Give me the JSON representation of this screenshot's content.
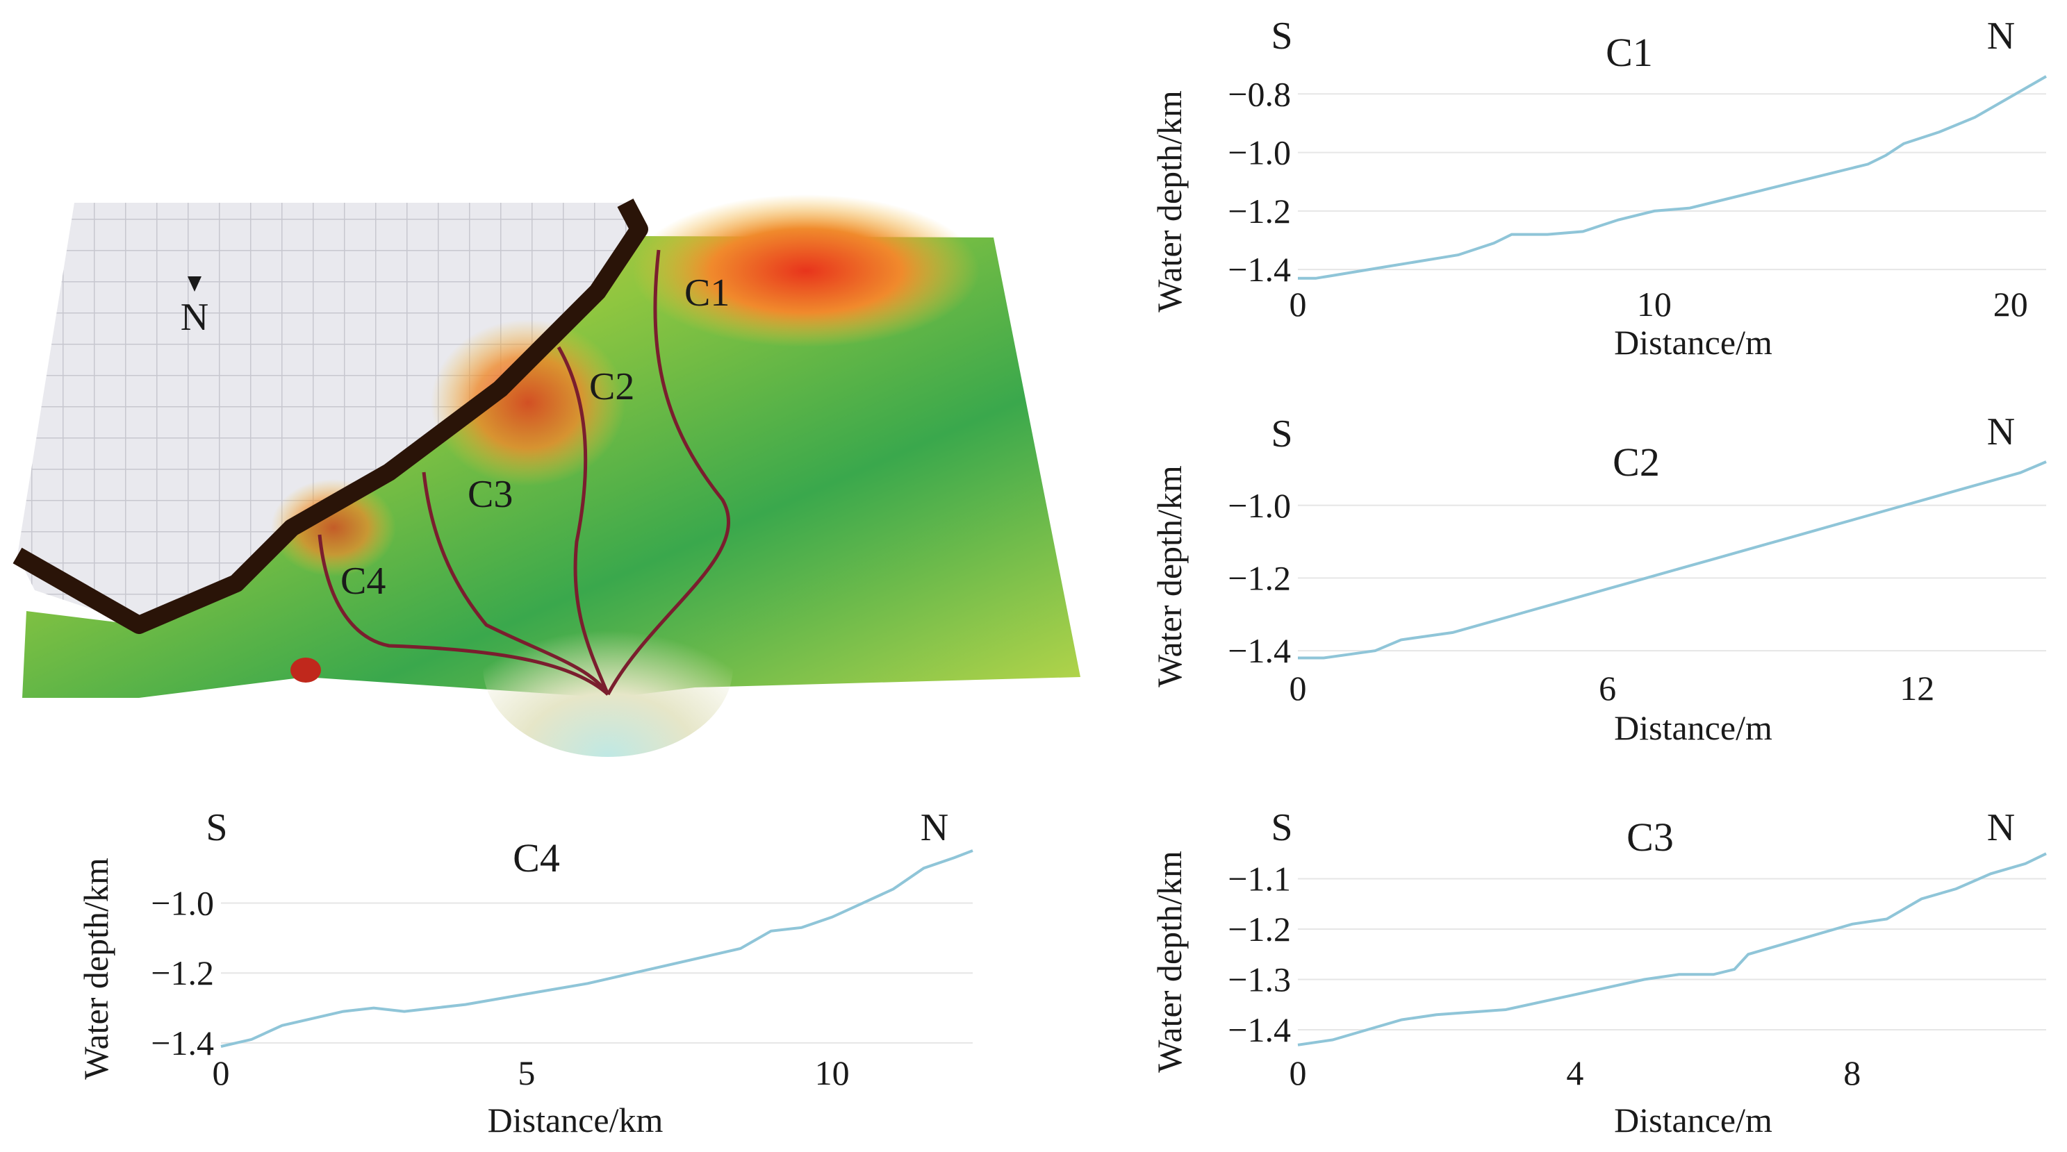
{
  "map": {
    "north_label": "N",
    "channel_labels": [
      "C1",
      "C2",
      "C3",
      "C4"
    ]
  },
  "colors": {
    "profile_line": "#8fc5d8",
    "grid": "#e6e6e6",
    "channel": "#7a1e2e"
  },
  "chart_data": [
    {
      "id": "C1",
      "type": "line",
      "title": "C1",
      "left_label": "S",
      "right_label": "N",
      "xlabel": "Distance/m",
      "ylabel": "Water depth/km",
      "xlim": [
        0,
        21
      ],
      "ylim": [
        -1.44,
        -0.74
      ],
      "xticks": [
        0,
        10,
        20
      ],
      "xtick_labels": [
        "0",
        "10",
        "20"
      ],
      "yticks": [
        -0.8,
        -1.0,
        -1.2,
        -1.4
      ],
      "ytick_labels": [
        "−0.8",
        "−1.0",
        "−1.2",
        "−1.4"
      ],
      "x": [
        0,
        0.5,
        1,
        1.5,
        2,
        2.5,
        3,
        3.5,
        4,
        4.5,
        5,
        5.5,
        6,
        7,
        8,
        8.5,
        9,
        10,
        11,
        12,
        13,
        14,
        15,
        16,
        16.5,
        17,
        17.5,
        18,
        19,
        20,
        21
      ],
      "y": [
        -1.43,
        -1.43,
        -1.42,
        -1.41,
        -1.4,
        -1.39,
        -1.38,
        -1.37,
        -1.36,
        -1.35,
        -1.33,
        -1.31,
        -1.28,
        -1.28,
        -1.27,
        -1.25,
        -1.23,
        -1.2,
        -1.19,
        -1.16,
        -1.13,
        -1.1,
        -1.07,
        -1.04,
        -1.01,
        -0.97,
        -0.95,
        -0.93,
        -0.88,
        -0.81,
        -0.74
      ]
    },
    {
      "id": "C2",
      "type": "line",
      "title": "C2",
      "left_label": "S",
      "right_label": "N",
      "xlabel": "Distance/m",
      "ylabel": "Water depth/km",
      "xlim": [
        0,
        14.5
      ],
      "ylim": [
        -1.44,
        -0.88
      ],
      "xticks": [
        0,
        6,
        12
      ],
      "xtick_labels": [
        "0",
        "6",
        "12"
      ],
      "yticks": [
        -1.0,
        -1.2,
        -1.4
      ],
      "ytick_labels": [
        "−1.0",
        "−1.2",
        "−1.4"
      ],
      "x": [
        0,
        0.5,
        1,
        1.5,
        2,
        2.5,
        3,
        3.5,
        4,
        4.5,
        5,
        5.5,
        6,
        6.5,
        7,
        7.5,
        8,
        8.5,
        9,
        9.5,
        10,
        10.5,
        11,
        11.5,
        12,
        12.5,
        13,
        13.5,
        14,
        14.5
      ],
      "y": [
        -1.42,
        -1.42,
        -1.41,
        -1.4,
        -1.37,
        -1.36,
        -1.35,
        -1.33,
        -1.31,
        -1.29,
        -1.27,
        -1.25,
        -1.23,
        -1.21,
        -1.19,
        -1.17,
        -1.15,
        -1.13,
        -1.11,
        -1.09,
        -1.07,
        -1.05,
        -1.03,
        -1.01,
        -0.99,
        -0.97,
        -0.95,
        -0.93,
        -0.91,
        -0.88
      ]
    },
    {
      "id": "C4",
      "type": "line",
      "title": "C4",
      "left_label": "S",
      "right_label": "N",
      "xlabel": "Distance/km",
      "ylabel": "Water depth/km",
      "xlim": [
        0,
        12.3
      ],
      "ylim": [
        -1.42,
        -0.84
      ],
      "xticks": [
        0,
        5,
        10
      ],
      "xtick_labels": [
        "0",
        "5",
        "10"
      ],
      "yticks": [
        -1.0,
        -1.2,
        -1.4
      ],
      "ytick_labels": [
        "−1.0",
        "−1.2",
        "−1.4"
      ],
      "x": [
        0,
        0.5,
        1,
        1.5,
        2,
        2.5,
        3,
        3.5,
        4,
        5,
        6,
        7,
        8,
        8.5,
        9,
        9.5,
        10,
        10.5,
        11,
        11.5,
        12,
        12.3
      ],
      "y": [
        -1.41,
        -1.39,
        -1.35,
        -1.33,
        -1.31,
        -1.3,
        -1.31,
        -1.3,
        -1.29,
        -1.26,
        -1.23,
        -1.19,
        -1.15,
        -1.13,
        -1.08,
        -1.07,
        -1.04,
        -1.0,
        -0.96,
        -0.9,
        -0.87,
        -0.85
      ]
    },
    {
      "id": "C3",
      "type": "line",
      "title": "C3",
      "left_label": "S",
      "right_label": "N",
      "xlabel": "Distance/m",
      "ylabel": "Water depth/km",
      "xlim": [
        0,
        10.8
      ],
      "ylim": [
        -1.44,
        -1.04
      ],
      "xticks": [
        0,
        4,
        8
      ],
      "xtick_labels": [
        "0",
        "4",
        "8"
      ],
      "yticks": [
        -1.1,
        -1.2,
        -1.3,
        -1.4
      ],
      "ytick_labels": [
        "−1.1",
        "−1.2",
        "−1.3",
        "−1.4"
      ],
      "x": [
        0,
        0.5,
        1,
        1.5,
        2,
        3,
        4,
        5,
        5.5,
        6,
        6.3,
        6.5,
        7,
        7.5,
        8,
        8.5,
        9,
        9.5,
        10,
        10.5,
        10.8
      ],
      "y": [
        -1.43,
        -1.42,
        -1.4,
        -1.38,
        -1.37,
        -1.36,
        -1.33,
        -1.3,
        -1.29,
        -1.29,
        -1.28,
        -1.25,
        -1.23,
        -1.21,
        -1.19,
        -1.18,
        -1.14,
        -1.12,
        -1.09,
        -1.07,
        -1.05
      ]
    }
  ]
}
